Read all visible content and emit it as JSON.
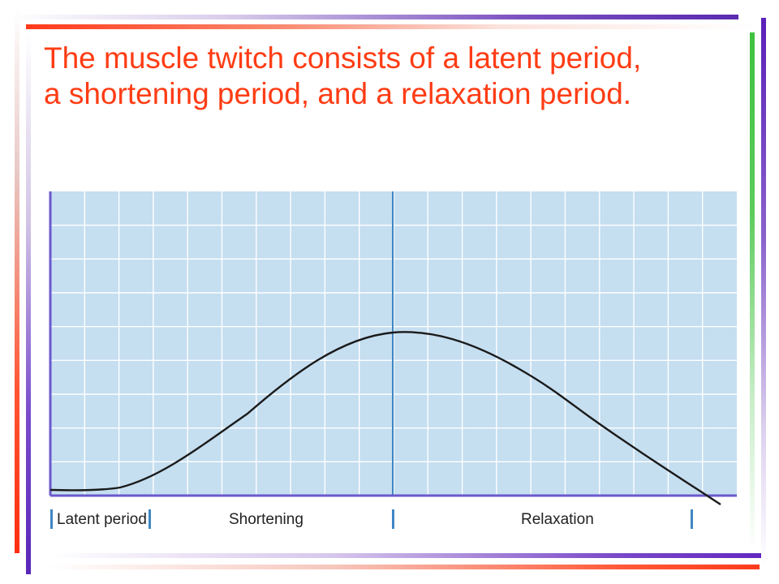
{
  "title": {
    "line1": "The muscle twitch consists of a latent period,",
    "line2": "a shortening period, and a relaxation period."
  },
  "diagram": {
    "phases": [
      {
        "label": "Latent period"
      },
      {
        "label": "Shortening"
      },
      {
        "label": "Relaxation"
      }
    ],
    "colors": {
      "plot_background": "#c5def0",
      "grid": "#ffffff",
      "peak_marker": "#3f86c4",
      "curve": "#1a1a1a",
      "axis": "#6a5acd",
      "phase_marker": "#3f86c4",
      "title": "#ff3c14"
    }
  }
}
